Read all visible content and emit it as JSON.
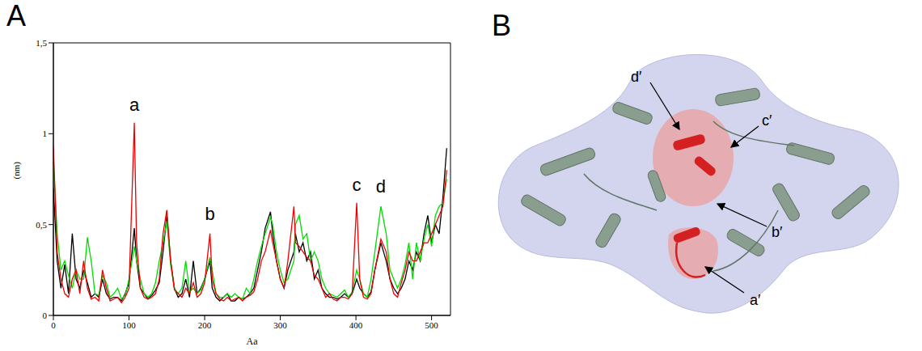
{
  "chart_data": {
    "type": "line",
    "x_label": "Aa",
    "y_label": "(nm)",
    "x": [
      0,
      5,
      10,
      15,
      20,
      25,
      30,
      35,
      40,
      45,
      50,
      55,
      60,
      65,
      70,
      75,
      80,
      85,
      90,
      95,
      100,
      107,
      110,
      115,
      120,
      125,
      130,
      135,
      140,
      145,
      150,
      155,
      160,
      165,
      170,
      175,
      180,
      185,
      190,
      195,
      200,
      207,
      210,
      215,
      220,
      225,
      230,
      235,
      240,
      245,
      250,
      255,
      260,
      265,
      270,
      275,
      280,
      287,
      290,
      295,
      300,
      305,
      310,
      318,
      320,
      325,
      330,
      335,
      340,
      345,
      350,
      355,
      360,
      365,
      370,
      375,
      380,
      385,
      390,
      395,
      401,
      405,
      410,
      415,
      420,
      425,
      433,
      440,
      445,
      450,
      455,
      460,
      465,
      470,
      475,
      480,
      485,
      490,
      495,
      500,
      505,
      510,
      515,
      520
    ],
    "series": [
      {
        "color": "#000000",
        "values": [
          0.7,
          0.3,
          0.15,
          0.28,
          0.12,
          0.45,
          0.2,
          0.15,
          0.25,
          0.18,
          0.1,
          0.12,
          0.1,
          0.2,
          0.12,
          0.09,
          0.1,
          0.1,
          0.08,
          0.12,
          0.18,
          0.48,
          0.3,
          0.15,
          0.12,
          0.09,
          0.11,
          0.14,
          0.18,
          0.35,
          0.55,
          0.3,
          0.15,
          0.1,
          0.12,
          0.2,
          0.1,
          0.3,
          0.12,
          0.15,
          0.2,
          0.3,
          0.15,
          0.1,
          0.08,
          0.1,
          0.12,
          0.08,
          0.08,
          0.1,
          0.09,
          0.1,
          0.12,
          0.15,
          0.25,
          0.35,
          0.48,
          0.57,
          0.45,
          0.3,
          0.2,
          0.15,
          0.25,
          0.35,
          0.45,
          0.35,
          0.4,
          0.3,
          0.35,
          0.2,
          0.25,
          0.15,
          0.12,
          0.1,
          0.1,
          0.09,
          0.1,
          0.12,
          0.1,
          0.12,
          0.2,
          0.15,
          0.12,
          0.1,
          0.13,
          0.25,
          0.4,
          0.3,
          0.2,
          0.15,
          0.12,
          0.15,
          0.2,
          0.3,
          0.25,
          0.35,
          0.3,
          0.45,
          0.55,
          0.4,
          0.5,
          0.45,
          0.65,
          0.92
        ]
      },
      {
        "color": "#00dd00",
        "values": [
          0.85,
          0.45,
          0.25,
          0.3,
          0.22,
          0.15,
          0.25,
          0.2,
          0.2,
          0.43,
          0.3,
          0.12,
          0.11,
          0.22,
          0.18,
          0.1,
          0.12,
          0.15,
          0.09,
          0.11,
          0.2,
          0.38,
          0.3,
          0.2,
          0.12,
          0.1,
          0.12,
          0.18,
          0.3,
          0.4,
          0.52,
          0.28,
          0.15,
          0.12,
          0.15,
          0.3,
          0.13,
          0.15,
          0.12,
          0.14,
          0.2,
          0.32,
          0.25,
          0.12,
          0.1,
          0.1,
          0.12,
          0.1,
          0.12,
          0.1,
          0.09,
          0.15,
          0.12,
          0.2,
          0.3,
          0.38,
          0.45,
          0.54,
          0.5,
          0.35,
          0.25,
          0.18,
          0.2,
          0.3,
          0.5,
          0.55,
          0.42,
          0.45,
          0.3,
          0.35,
          0.3,
          0.2,
          0.15,
          0.12,
          0.11,
          0.1,
          0.12,
          0.14,
          0.1,
          0.13,
          0.25,
          0.2,
          0.12,
          0.1,
          0.2,
          0.35,
          0.6,
          0.45,
          0.25,
          0.2,
          0.15,
          0.2,
          0.28,
          0.4,
          0.2,
          0.4,
          0.3,
          0.42,
          0.5,
          0.38,
          0.55,
          0.6,
          0.62,
          0.75
        ]
      },
      {
        "color": "#ee0000",
        "values": [
          0.93,
          0.35,
          0.2,
          0.12,
          0.1,
          0.2,
          0.25,
          0.12,
          0.3,
          0.15,
          0.09,
          0.1,
          0.08,
          0.25,
          0.15,
          0.08,
          0.09,
          0.1,
          0.07,
          0.1,
          0.15,
          1.06,
          0.4,
          0.15,
          0.1,
          0.09,
          0.1,
          0.12,
          0.2,
          0.45,
          0.58,
          0.3,
          0.14,
          0.12,
          0.1,
          0.15,
          0.12,
          0.18,
          0.1,
          0.12,
          0.18,
          0.45,
          0.2,
          0.12,
          0.09,
          0.08,
          0.1,
          0.08,
          0.09,
          0.1,
          0.08,
          0.1,
          0.11,
          0.13,
          0.2,
          0.3,
          0.35,
          0.47,
          0.4,
          0.3,
          0.2,
          0.15,
          0.3,
          0.6,
          0.4,
          0.38,
          0.35,
          0.32,
          0.3,
          0.22,
          0.2,
          0.15,
          0.1,
          0.12,
          0.09,
          0.08,
          0.1,
          0.1,
          0.09,
          0.12,
          0.62,
          0.2,
          0.1,
          0.09,
          0.12,
          0.25,
          0.42,
          0.35,
          0.2,
          0.12,
          0.1,
          0.18,
          0.25,
          0.35,
          0.3,
          0.3,
          0.35,
          0.4,
          0.4,
          0.45,
          0.5,
          0.55,
          0.6,
          0.8
        ]
      }
    ],
    "xlim": [
      0,
      525
    ],
    "xticks": [
      0,
      100,
      200,
      300,
      400,
      500
    ],
    "ylim": [
      0,
      1.5
    ],
    "yticks": [
      0,
      {
        "value": 0.5,
        "label": "0,5"
      },
      1,
      {
        "value": 1.5,
        "label": "1,5"
      }
    ],
    "grid": false,
    "annotations": [
      {
        "text": "a",
        "x": 107,
        "y": 1.16
      },
      {
        "text": "b",
        "x": 207,
        "y": 0.56
      },
      {
        "text": "c",
        "x": 401,
        "y": 0.72
      },
      {
        "text": "d",
        "x": 433,
        "y": 0.71
      }
    ]
  },
  "figure": {
    "panel_labels": [
      "A",
      "B"
    ],
    "panel_b": {
      "type": "diagram",
      "labels": [
        "a′",
        "b′",
        "c′",
        "d′"
      ]
    }
  }
}
